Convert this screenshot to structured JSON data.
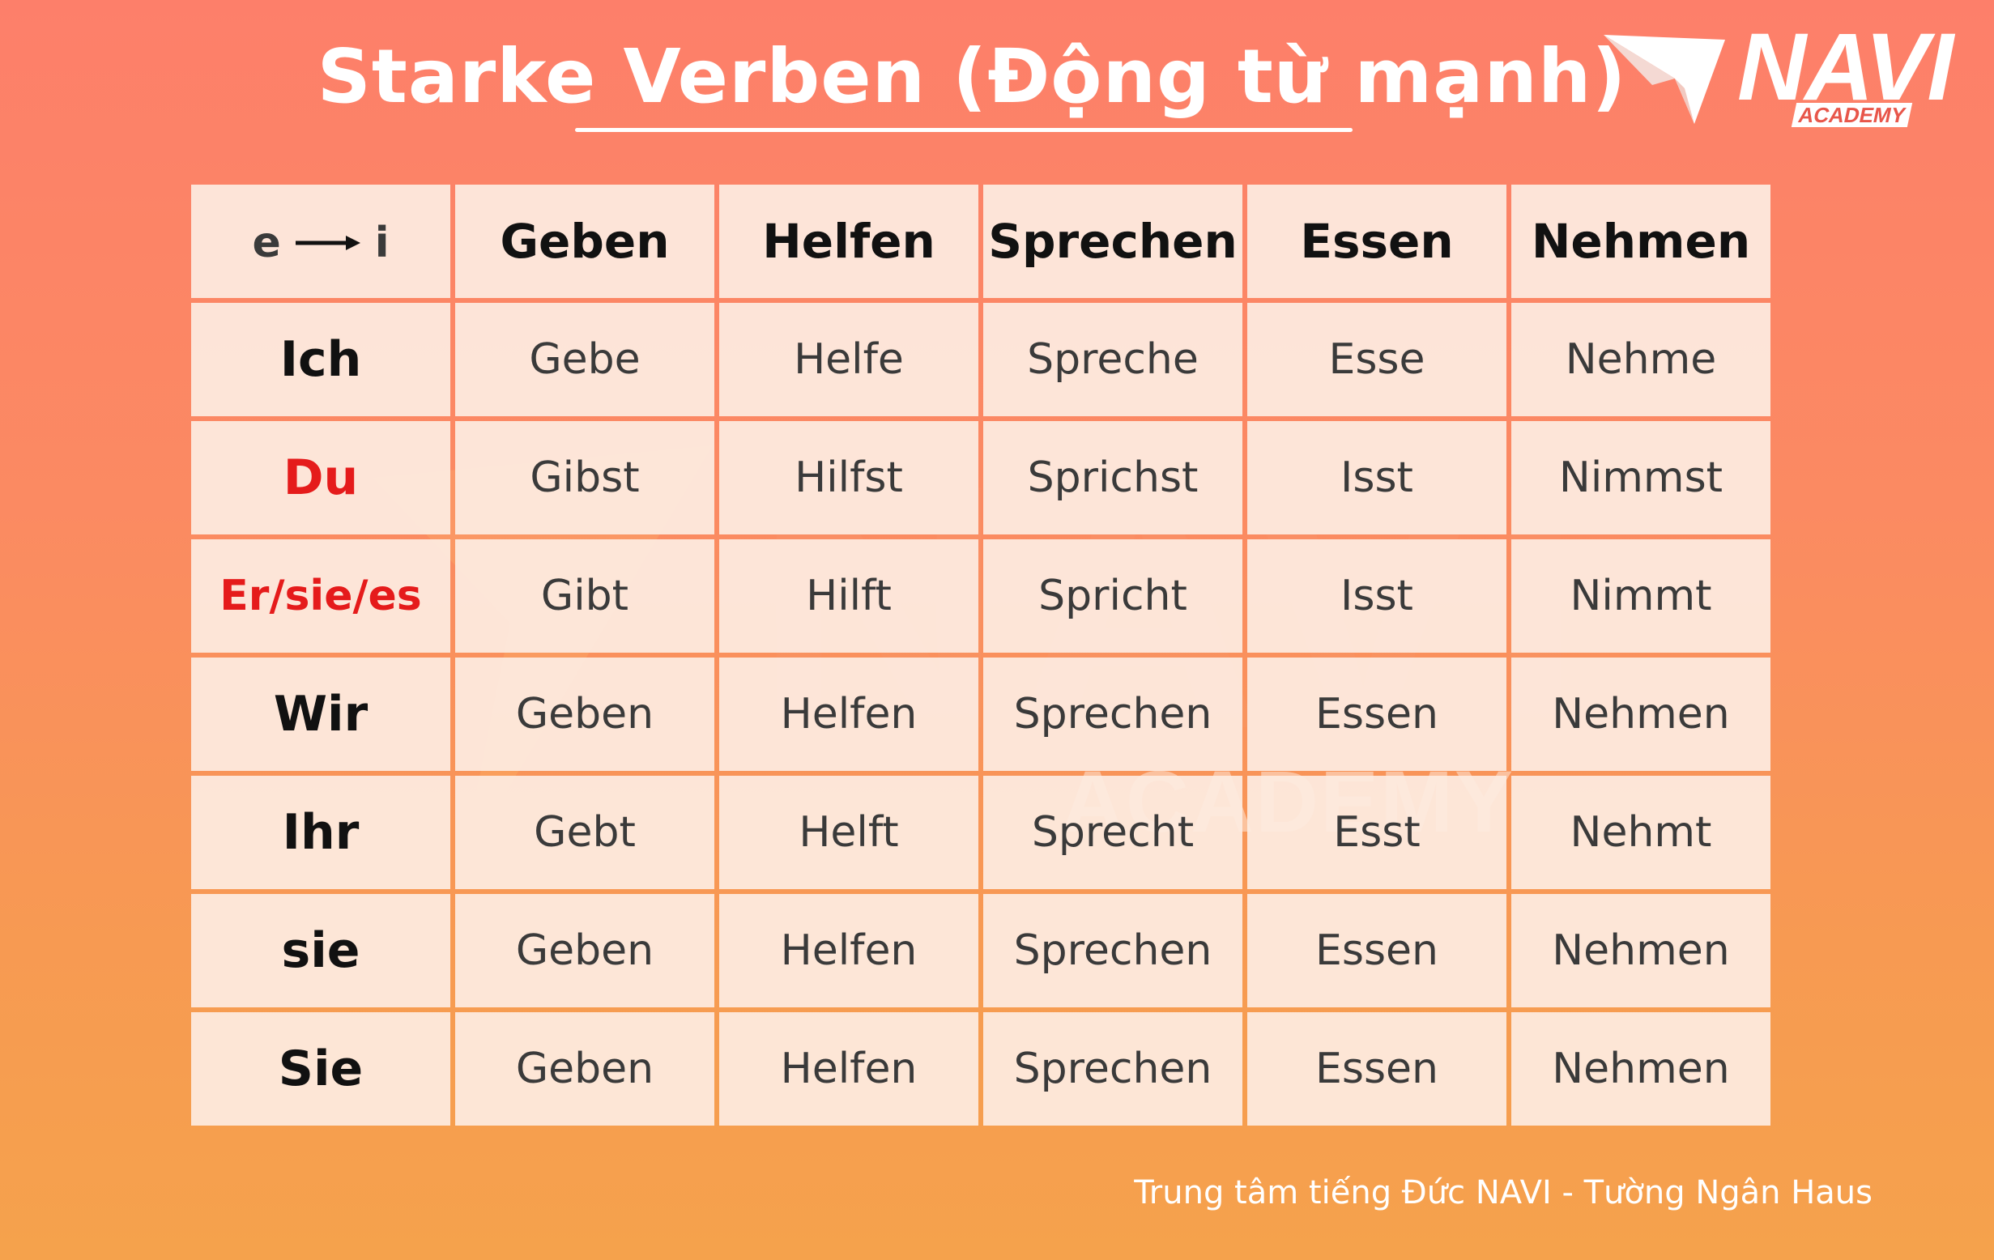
{
  "title": "Starke Verben (Động từ mạnh)",
  "logo": {
    "text": "NAVI",
    "badge": "ACADEMY"
  },
  "watermark": {
    "text": "NAVI",
    "subtext": "ACADEMY"
  },
  "table": {
    "corner": {
      "from": "e",
      "to": "i",
      "arrow_icon": "right-arrow-icon"
    },
    "headers": [
      "Geben",
      "Helfen",
      "Sprechen",
      "Essen",
      "Nehmen"
    ],
    "rows": [
      {
        "pronoun": "Ich",
        "highlight": false,
        "forms": [
          "Gebe",
          "Helfe",
          "Spreche",
          "Esse",
          "Nehme"
        ]
      },
      {
        "pronoun": "Du",
        "highlight": true,
        "forms": [
          "Gibst",
          "Hilfst",
          "Sprichst",
          "Isst",
          "Nimmst"
        ]
      },
      {
        "pronoun": "Er/sie/es",
        "highlight": true,
        "forms": [
          "Gibt",
          "Hilft",
          "Spricht",
          "Isst",
          "Nimmt"
        ]
      },
      {
        "pronoun": "Wir",
        "highlight": false,
        "forms": [
          "Geben",
          "Helfen",
          "Sprechen",
          "Essen",
          "Nehmen"
        ]
      },
      {
        "pronoun": "Ihr",
        "highlight": false,
        "forms": [
          "Gebt",
          "Helft",
          "Sprecht",
          "Esst",
          "Nehmt"
        ]
      },
      {
        "pronoun": "sie",
        "highlight": false,
        "forms": [
          "Geben",
          "Helfen",
          "Sprechen",
          "Essen",
          "Nehmen"
        ]
      },
      {
        "pronoun": "Sie",
        "highlight": false,
        "forms": [
          "Geben",
          "Helfen",
          "Sprechen",
          "Essen",
          "Nehmen"
        ]
      }
    ]
  },
  "colors": {
    "highlight_pronoun": "#e51b1b",
    "background_top": "#fd7f6a",
    "background_bottom": "#f5a24c",
    "cell_background": "#fdece1"
  },
  "footer": "Trung tâm tiếng Đức NAVI - Tường Ngân Haus"
}
